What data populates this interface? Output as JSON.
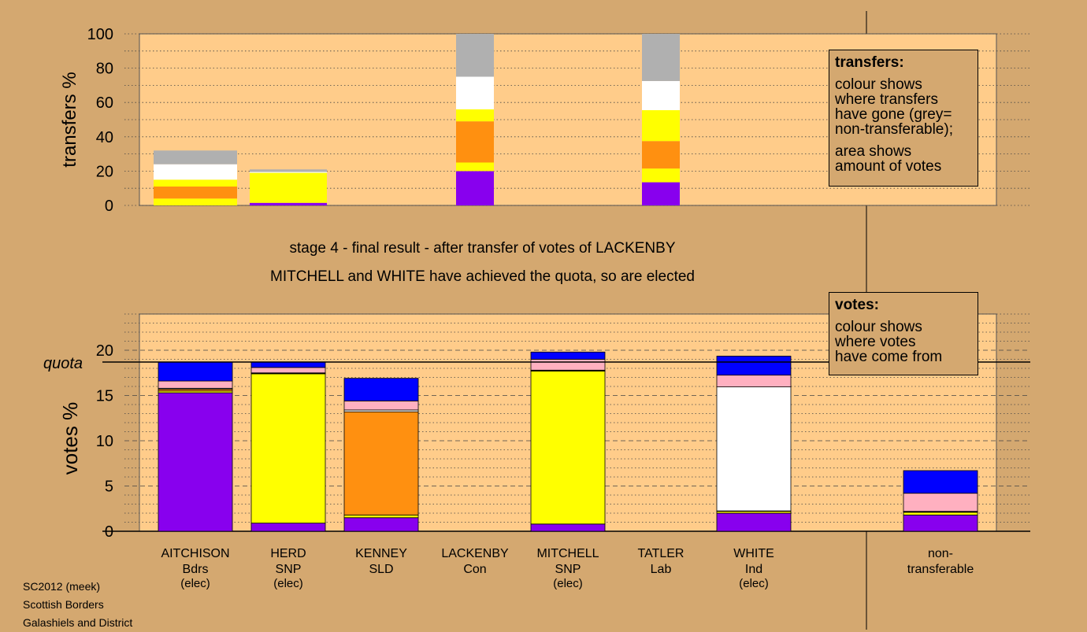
{
  "colors": {
    "background": "#d4a870",
    "plot_background": "#ffcc8a",
    "purple": "#8800ee",
    "yellow": "#ffff00",
    "orange": "#ff9010",
    "white": "#ffffff",
    "pink": "#ffb0c0",
    "blue": "#0000ff",
    "grey": "#b0b0b0"
  },
  "header": {
    "stage": "stage 4 - final result - after transfer of votes of LACKENBY",
    "elected": "MITCHELL and WHITE have achieved the quota, so are elected"
  },
  "transfers_legend": {
    "title": "transfers:",
    "line1": "colour shows",
    "line2": "where transfers",
    "line3": "have gone (grey=",
    "line4": "non-transferable);",
    "line5": "area shows",
    "line6": "amount of votes"
  },
  "votes_legend": {
    "title": "votes:",
    "line1": "colour shows",
    "line2": "where votes",
    "line3": "have come from"
  },
  "info": {
    "line1": "SC2012 (meek)",
    "line2": "Scottish Borders",
    "line3": "Galashiels and District"
  },
  "chart_data": [
    {
      "type": "bar",
      "stacked": true,
      "ylabel": "transfers %",
      "ylim": [
        0,
        100
      ],
      "yticks": [
        0,
        20,
        40,
        60,
        80,
        100
      ],
      "grid": "dotted",
      "legend": "top-right",
      "categories": [
        "AITCHISON",
        "HERD",
        "LACKENBY",
        "TATLER"
      ],
      "segment_colors": [
        "purple",
        "yellow",
        "orange",
        "yellow",
        "white",
        "grey"
      ],
      "stacks": [
        [
          0,
          4,
          7,
          4,
          9,
          8
        ],
        [
          1.5,
          17.5,
          0,
          0,
          0.5,
          1.5
        ],
        [
          20,
          5,
          24,
          7,
          19,
          25
        ],
        [
          13.5,
          8,
          16,
          18,
          17,
          27.5
        ]
      ]
    },
    {
      "type": "bar",
      "stacked": true,
      "ylabel": "votes %",
      "ylim": [
        0,
        24
      ],
      "yticks": [
        0,
        5,
        10,
        15,
        20
      ],
      "quota": 18.7,
      "quota_label": "quota",
      "grid": "dotted",
      "legend": "top-right",
      "categories": [
        {
          "name": "AITCHISON",
          "party": "Bdrs",
          "status": "(elec)"
        },
        {
          "name": "HERD",
          "party": "SNP",
          "status": "(elec)"
        },
        {
          "name": "KENNEY",
          "party": "SLD",
          "status": ""
        },
        {
          "name": "LACKENBY",
          "party": "Con",
          "status": ""
        },
        {
          "name": "MITCHELL",
          "party": "SNP",
          "status": "(elec)"
        },
        {
          "name": "TATLER",
          "party": "Lab",
          "status": ""
        },
        {
          "name": "WHITE",
          "party": "Ind",
          "status": "(elec)"
        },
        {
          "name": "non-",
          "party": "transferable",
          "status": ""
        }
      ],
      "segment_colors": [
        "purple",
        "yellow",
        "orange",
        "white",
        "pink",
        "blue"
      ],
      "stacks": [
        [
          15.3,
          0.2,
          0.2,
          0.1,
          0.8,
          2.1
        ],
        [
          0.9,
          16.5,
          0.05,
          0.05,
          0.6,
          0.6
        ],
        [
          1.5,
          0.3,
          11.4,
          0.2,
          1.0,
          2.5
        ],
        [
          0,
          0,
          0,
          0,
          0,
          0
        ],
        [
          0.8,
          16.9,
          0.05,
          0.05,
          1.2,
          0.8
        ],
        [
          0,
          0,
          0,
          0,
          0,
          0
        ],
        [
          2.0,
          0.2,
          0.05,
          13.7,
          1.3,
          2.1
        ],
        [
          1.8,
          0.3,
          0.05,
          0.05,
          2.0,
          2.5
        ]
      ]
    }
  ]
}
